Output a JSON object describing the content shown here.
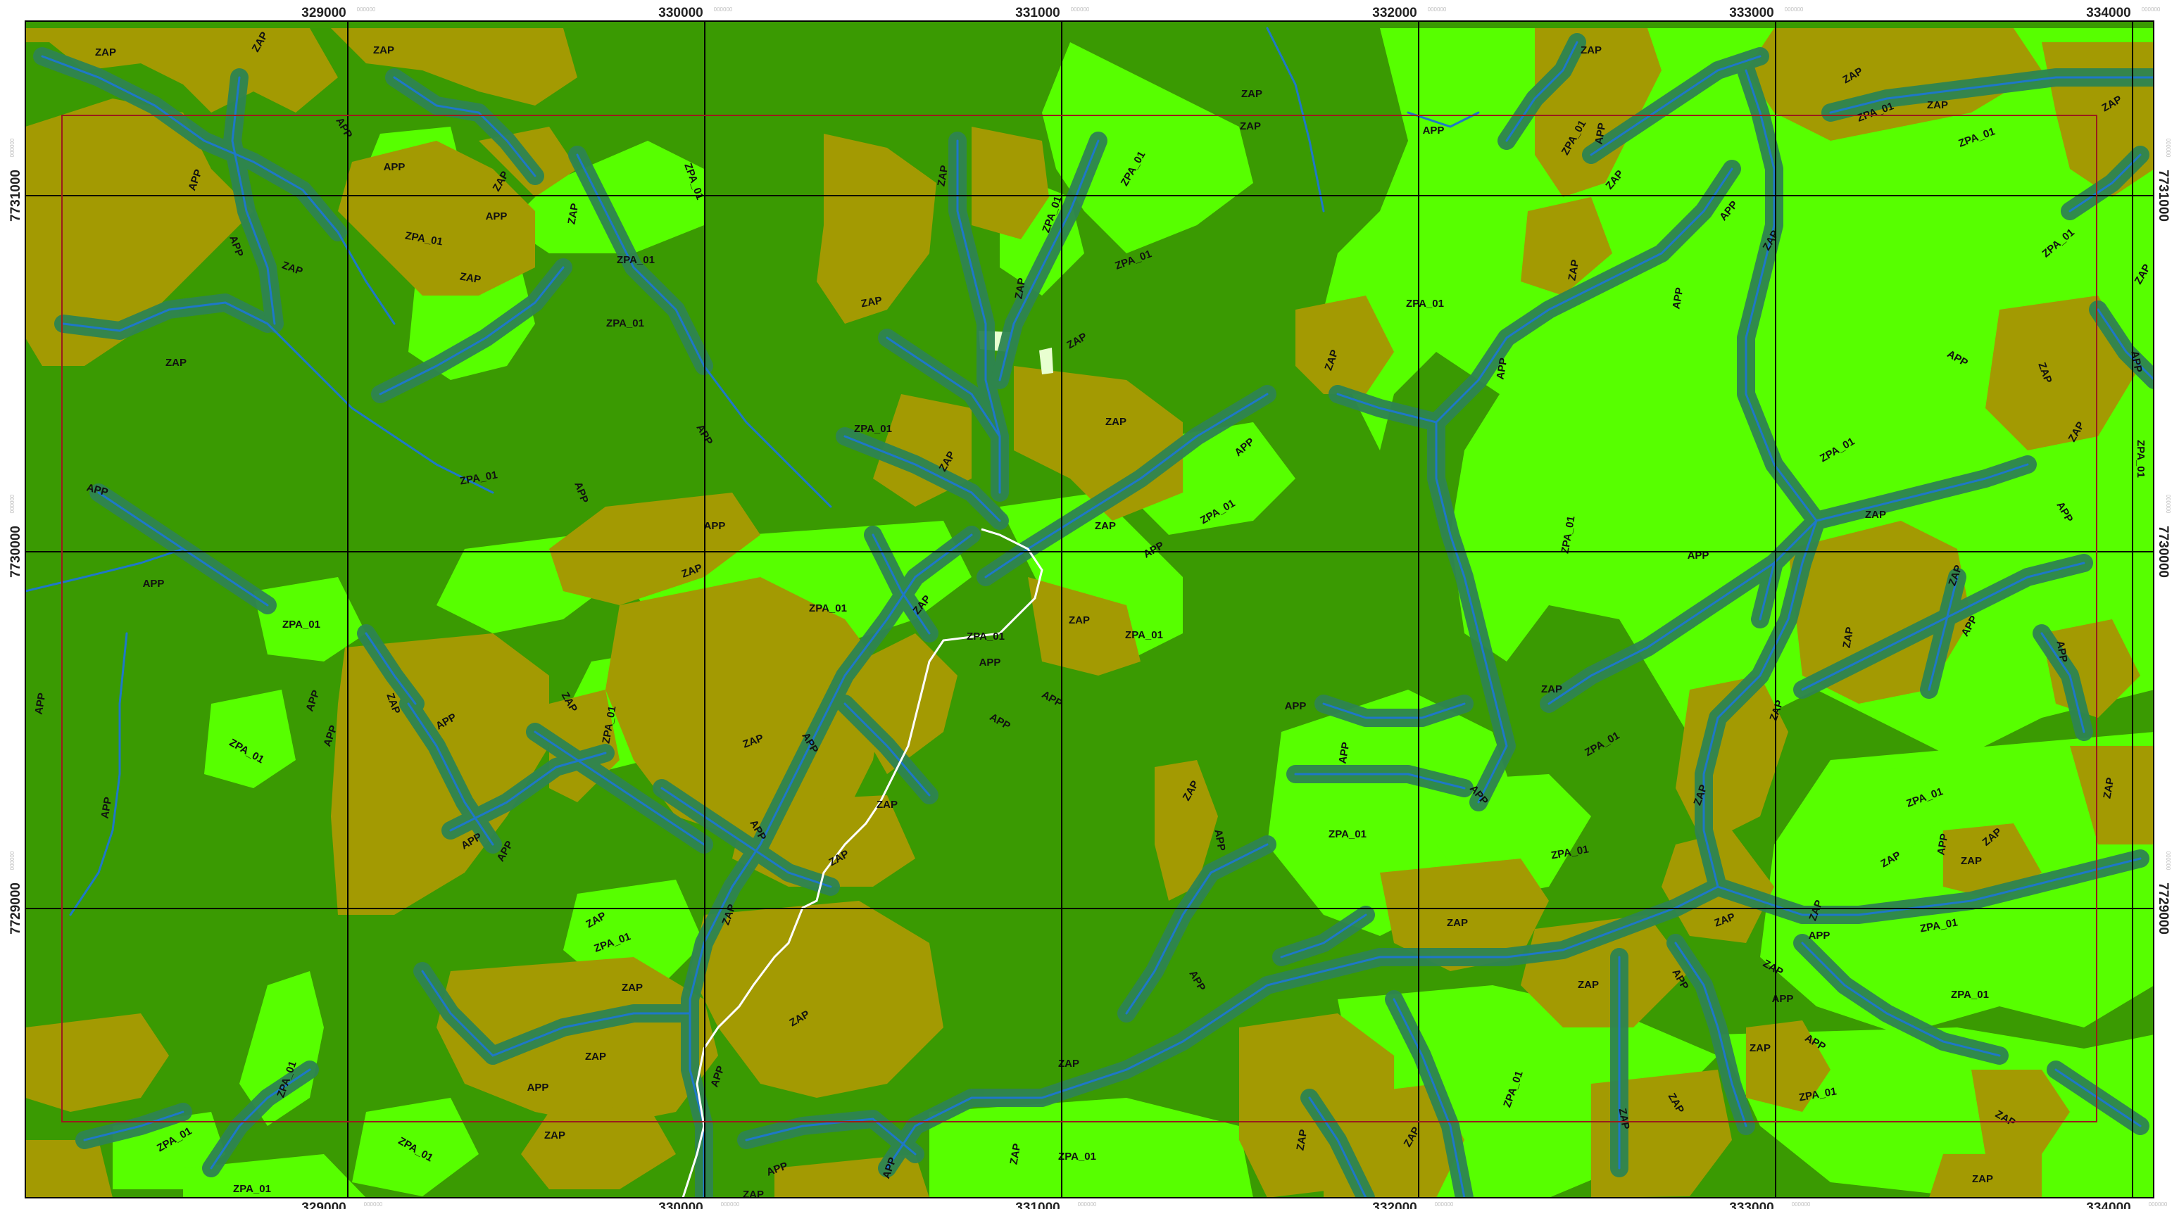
{
  "map": {
    "colors": {
      "forest": "#3a9a02",
      "zpa": "#57ff00",
      "zpa_light": "#7cff2a",
      "zap": "#a39a02",
      "app_buffer": "#2e8450",
      "stream": "#1e78c8",
      "road": "#ffffff",
      "grid": "#000000",
      "inner_frame": "#9a1c1c",
      "clearing": "#e8ffd0"
    },
    "legend_classes": [
      "ZAP",
      "ZPA_01",
      "APP"
    ],
    "x_ticks": [
      "329000",
      "330000",
      "331000",
      "332000",
      "333000",
      "334000"
    ],
    "x_tick_subs": [
      "000000",
      "000000",
      "000000",
      "000000",
      "000000",
      "000000"
    ],
    "y_ticks": [
      "7731000",
      "7730000",
      "7729000"
    ],
    "y_tick_subs": [
      "000000",
      "000000",
      "000000"
    ],
    "zone_labels": [
      {
        "text": "ZAP",
        "x": 150,
        "y": 75,
        "r": 0
      },
      {
        "text": "ZAP",
        "x": 370,
        "y": 60,
        "r": -60
      },
      {
        "text": "ZAP",
        "x": 545,
        "y": 72,
        "r": 0
      },
      {
        "text": "APP",
        "x": 488,
        "y": 182,
        "r": 60
      },
      {
        "text": "APP",
        "x": 560,
        "y": 238,
        "r": 0
      },
      {
        "text": "ZAP",
        "x": 712,
        "y": 258,
        "r": -60
      },
      {
        "text": "APP",
        "x": 278,
        "y": 256,
        "r": -70
      },
      {
        "text": "APP",
        "x": 705,
        "y": 308,
        "r": 0
      },
      {
        "text": "ZAP",
        "x": 815,
        "y": 304,
        "r": -80
      },
      {
        "text": "ZPA_01",
        "x": 985,
        "y": 258,
        "r": 70
      },
      {
        "text": "ZPA_01",
        "x": 602,
        "y": 340,
        "r": 10
      },
      {
        "text": "ZPA_01",
        "x": 903,
        "y": 370,
        "r": 0
      },
      {
        "text": "APP",
        "x": 335,
        "y": 350,
        "r": 70
      },
      {
        "text": "ZAP",
        "x": 415,
        "y": 382,
        "r": 20
      },
      {
        "text": "ZAP",
        "x": 668,
        "y": 396,
        "r": 10
      },
      {
        "text": "ZPA_01",
        "x": 888,
        "y": 460,
        "r": 0
      },
      {
        "text": "ZAP",
        "x": 250,
        "y": 516,
        "r": 0
      },
      {
        "text": "APP",
        "x": 1000,
        "y": 618,
        "r": 60
      },
      {
        "text": "APP",
        "x": 138,
        "y": 697,
        "r": 15
      },
      {
        "text": "ZPA_01",
        "x": 1240,
        "y": 610,
        "r": 0
      },
      {
        "text": "ZPA_01",
        "x": 680,
        "y": 680,
        "r": -10
      },
      {
        "text": "APP",
        "x": 825,
        "y": 700,
        "r": 70
      },
      {
        "text": "ZAP",
        "x": 1340,
        "y": 250,
        "r": -80
      },
      {
        "text": "ZPA_01",
        "x": 1495,
        "y": 305,
        "r": -70
      },
      {
        "text": "ZPA_01",
        "x": 1610,
        "y": 240,
        "r": -60
      },
      {
        "text": "ZAP",
        "x": 1776,
        "y": 180,
        "r": 0
      },
      {
        "text": "ZAP",
        "x": 1450,
        "y": 410,
        "r": -80
      },
      {
        "text": "ZPA_01",
        "x": 1610,
        "y": 370,
        "r": -20
      },
      {
        "text": "ZAP",
        "x": 1238,
        "y": 430,
        "r": -10
      },
      {
        "text": "ZAP",
        "x": 1530,
        "y": 485,
        "r": -30
      },
      {
        "text": "ZAP",
        "x": 1585,
        "y": 600,
        "r": 0
      },
      {
        "text": "ZAP",
        "x": 1346,
        "y": 656,
        "r": -60
      },
      {
        "text": "APP",
        "x": 1015,
        "y": 748,
        "r": 0
      },
      {
        "text": "ZPA_01",
        "x": 1730,
        "y": 728,
        "r": -30
      },
      {
        "text": "ZAP",
        "x": 1570,
        "y": 748,
        "r": 0
      },
      {
        "text": "APP",
        "x": 1768,
        "y": 636,
        "r": -40
      },
      {
        "text": "ZAP",
        "x": 983,
        "y": 812,
        "r": -20
      },
      {
        "text": "ZPA_01",
        "x": 1176,
        "y": 865,
        "r": 0
      },
      {
        "text": "ZAP",
        "x": 1310,
        "y": 860,
        "r": -50
      },
      {
        "text": "ZPA_01",
        "x": 1400,
        "y": 905,
        "r": 0
      },
      {
        "text": "ZAP",
        "x": 1533,
        "y": 882,
        "r": 0
      },
      {
        "text": "ZPA_01",
        "x": 1625,
        "y": 903,
        "r": 0
      },
      {
        "text": "APP",
        "x": 1639,
        "y": 782,
        "r": -30
      },
      {
        "text": "APP",
        "x": 218,
        "y": 830,
        "r": 0
      },
      {
        "text": "ZPA_01",
        "x": 428,
        "y": 888,
        "r": 0
      },
      {
        "text": "APP",
        "x": 58,
        "y": 1000,
        "r": -80
      },
      {
        "text": "ZPA_01",
        "x": 350,
        "y": 1068,
        "r": 30
      },
      {
        "text": "APP",
        "x": 445,
        "y": 996,
        "r": -70
      },
      {
        "text": "APP",
        "x": 470,
        "y": 1046,
        "r": -70
      },
      {
        "text": "ZAP",
        "x": 558,
        "y": 1000,
        "r": 70
      },
      {
        "text": "APP",
        "x": 634,
        "y": 1026,
        "r": -30
      },
      {
        "text": "ZAP",
        "x": 808,
        "y": 998,
        "r": 60
      },
      {
        "text": "ZPA_01",
        "x": 866,
        "y": 1030,
        "r": -80
      },
      {
        "text": "ZAP",
        "x": 1070,
        "y": 1054,
        "r": -20
      },
      {
        "text": "APP",
        "x": 1150,
        "y": 1056,
        "r": 60
      },
      {
        "text": "APP",
        "x": 1406,
        "y": 942,
        "r": 0
      },
      {
        "text": "APP",
        "x": 1494,
        "y": 994,
        "r": 30
      },
      {
        "text": "APP",
        "x": 1420,
        "y": 1026,
        "r": 30
      },
      {
        "text": "APP",
        "x": 152,
        "y": 1148,
        "r": -80
      },
      {
        "text": "ZAP",
        "x": 1260,
        "y": 1144,
        "r": 0
      },
      {
        "text": "APP",
        "x": 1076,
        "y": 1180,
        "r": 60
      },
      {
        "text": "APP",
        "x": 670,
        "y": 1196,
        "r": -30
      },
      {
        "text": "ZAP",
        "x": 1192,
        "y": 1220,
        "r": -30
      },
      {
        "text": "APP",
        "x": 718,
        "y": 1210,
        "r": -60
      },
      {
        "text": "ZAP",
        "x": 1692,
        "y": 1124,
        "r": -60
      },
      {
        "text": "APP",
        "x": 1732,
        "y": 1194,
        "r": 80
      },
      {
        "text": "ZPA_01",
        "x": 1914,
        "y": 1186,
        "r": 0
      },
      {
        "text": "APP",
        "x": 1840,
        "y": 1004,
        "r": 0
      },
      {
        "text": "APP",
        "x": 1910,
        "y": 1070,
        "r": -80
      },
      {
        "text": "ZAP",
        "x": 847,
        "y": 1308,
        "r": -30
      },
      {
        "text": "ZPA_01",
        "x": 870,
        "y": 1340,
        "r": -20
      },
      {
        "text": "ZAP",
        "x": 898,
        "y": 1404,
        "r": 0
      },
      {
        "text": "ZAP",
        "x": 1036,
        "y": 1300,
        "r": -70
      },
      {
        "text": "ZAP",
        "x": 1136,
        "y": 1448,
        "r": -30
      },
      {
        "text": "ZAP",
        "x": 846,
        "y": 1502,
        "r": 0
      },
      {
        "text": "APP",
        "x": 764,
        "y": 1546,
        "r": 0
      },
      {
        "text": "APP",
        "x": 1020,
        "y": 1530,
        "r": -70
      },
      {
        "text": "ZAP",
        "x": 1518,
        "y": 1512,
        "r": 0
      },
      {
        "text": "APP",
        "x": 1700,
        "y": 1394,
        "r": 60
      },
      {
        "text": "ZPA_01",
        "x": 408,
        "y": 1534,
        "r": -70
      },
      {
        "text": "ZAP",
        "x": 788,
        "y": 1614,
        "r": 0
      },
      {
        "text": "ZPA_01",
        "x": 248,
        "y": 1620,
        "r": -30
      },
      {
        "text": "ZPA_01",
        "x": 590,
        "y": 1634,
        "r": 30
      },
      {
        "text": "ZPA_01",
        "x": 358,
        "y": 1690,
        "r": 0
      },
      {
        "text": "ZAP",
        "x": 1070,
        "y": 1698,
        "r": 0
      },
      {
        "text": "APP",
        "x": 1104,
        "y": 1662,
        "r": -20
      },
      {
        "text": "APP",
        "x": 1264,
        "y": 1660,
        "r": -70
      },
      {
        "text": "ZAP",
        "x": 1443,
        "y": 1640,
        "r": -80
      },
      {
        "text": "ZPA_01",
        "x": 1530,
        "y": 1644,
        "r": 0
      },
      {
        "text": "ZAP",
        "x": 1850,
        "y": 1620,
        "r": -80
      },
      {
        "text": "ZAP",
        "x": 2006,
        "y": 1616,
        "r": -60
      },
      {
        "text": "ZPA_01",
        "x": 2150,
        "y": 1548,
        "r": -70
      },
      {
        "text": "ZAP",
        "x": 2256,
        "y": 1400,
        "r": 0
      },
      {
        "text": "ZAP",
        "x": 2070,
        "y": 1312,
        "r": 0
      },
      {
        "text": "ZPA_01",
        "x": 2230,
        "y": 1212,
        "r": -10
      },
      {
        "text": "ZPA_01",
        "x": 2024,
        "y": 432,
        "r": 0
      },
      {
        "text": "ZAP",
        "x": 1892,
        "y": 512,
        "r": -70
      },
      {
        "text": "ZPA_01",
        "x": 2228,
        "y": 760,
        "r": -80
      },
      {
        "text": "APP",
        "x": 2036,
        "y": 186,
        "r": 0
      },
      {
        "text": "ZAP",
        "x": 1778,
        "y": 134,
        "r": 0
      },
      {
        "text": "ZAP",
        "x": 2260,
        "y": 72,
        "r": 0
      },
      {
        "text": "ZPA_01",
        "x": 2236,
        "y": 196,
        "r": -60
      },
      {
        "text": "APP",
        "x": 2274,
        "y": 190,
        "r": -80
      },
      {
        "text": "ZAP",
        "x": 2294,
        "y": 256,
        "r": -50
      },
      {
        "text": "ZAP",
        "x": 2236,
        "y": 384,
        "r": -80
      },
      {
        "text": "APP",
        "x": 2134,
        "y": 524,
        "r": -80
      },
      {
        "text": "APP",
        "x": 2384,
        "y": 424,
        "r": -80
      },
      {
        "text": "APP",
        "x": 2456,
        "y": 300,
        "r": -50
      },
      {
        "text": "ZAP",
        "x": 2632,
        "y": 108,
        "r": -30
      },
      {
        "text": "ZPA_01",
        "x": 2664,
        "y": 160,
        "r": -20
      },
      {
        "text": "ZAP",
        "x": 2752,
        "y": 150,
        "r": 0
      },
      {
        "text": "ZAP",
        "x": 3000,
        "y": 148,
        "r": -30
      },
      {
        "text": "ZPA_01",
        "x": 2808,
        "y": 196,
        "r": -20
      },
      {
        "text": "ZPA_01",
        "x": 2924,
        "y": 346,
        "r": -40
      },
      {
        "text": "ZAP",
        "x": 2516,
        "y": 342,
        "r": -60
      },
      {
        "text": "APP",
        "x": 2780,
        "y": 510,
        "r": 30
      },
      {
        "text": "ZAP",
        "x": 2904,
        "y": 530,
        "r": 70
      },
      {
        "text": "APP",
        "x": 3034,
        "y": 514,
        "r": 80
      },
      {
        "text": "ZAP",
        "x": 3044,
        "y": 390,
        "r": -60
      },
      {
        "text": "ZPA_01",
        "x": 2610,
        "y": 640,
        "r": -30
      },
      {
        "text": "ZAP",
        "x": 2950,
        "y": 614,
        "r": -60
      },
      {
        "text": "ZPA_01",
        "x": 3040,
        "y": 652,
        "r": 90
      },
      {
        "text": "APP",
        "x": 2932,
        "y": 728,
        "r": 60
      },
      {
        "text": "APP",
        "x": 2412,
        "y": 790,
        "r": 0
      },
      {
        "text": "ZAP",
        "x": 2664,
        "y": 732,
        "r": 0
      },
      {
        "text": "ZAP",
        "x": 2778,
        "y": 818,
        "r": -70
      },
      {
        "text": "APP",
        "x": 2798,
        "y": 890,
        "r": -60
      },
      {
        "text": "APP",
        "x": 2928,
        "y": 926,
        "r": 80
      },
      {
        "text": "ZAP",
        "x": 2626,
        "y": 906,
        "r": -80
      },
      {
        "text": "ZPA_01",
        "x": 2276,
        "y": 1058,
        "r": -30
      },
      {
        "text": "ZAP",
        "x": 2204,
        "y": 980,
        "r": 0
      },
      {
        "text": "APP",
        "x": 2100,
        "y": 1130,
        "r": 50
      },
      {
        "text": "ZAP",
        "x": 2416,
        "y": 1130,
        "r": -70
      },
      {
        "text": "ZAP",
        "x": 2524,
        "y": 1010,
        "r": -70
      },
      {
        "text": "ZPA_01",
        "x": 2734,
        "y": 1134,
        "r": -20
      },
      {
        "text": "ZAP",
        "x": 2686,
        "y": 1222,
        "r": -30
      },
      {
        "text": "APP",
        "x": 2760,
        "y": 1200,
        "r": -80
      },
      {
        "text": "ZAP",
        "x": 2830,
        "y": 1190,
        "r": -40
      },
      {
        "text": "ZAP",
        "x": 2800,
        "y": 1224,
        "r": 0
      },
      {
        "text": "ZAP",
        "x": 2996,
        "y": 1120,
        "r": -80
      },
      {
        "text": "APP",
        "x": 2584,
        "y": 1330,
        "r": 0
      },
      {
        "text": "ZPA_01",
        "x": 2754,
        "y": 1316,
        "r": -10
      },
      {
        "text": "ZAP",
        "x": 2580,
        "y": 1294,
        "r": -70
      },
      {
        "text": "ZAP",
        "x": 2450,
        "y": 1308,
        "r": -20
      },
      {
        "text": "ZPA_01",
        "x": 2798,
        "y": 1414,
        "r": 0
      },
      {
        "text": "ZAP",
        "x": 2518,
        "y": 1376,
        "r": 30
      },
      {
        "text": "APP",
        "x": 2532,
        "y": 1420,
        "r": 0
      },
      {
        "text": "ZAP",
        "x": 2500,
        "y": 1490,
        "r": 0
      },
      {
        "text": "APP",
        "x": 2578,
        "y": 1482,
        "r": 30
      },
      {
        "text": "APP",
        "x": 2386,
        "y": 1392,
        "r": 60
      },
      {
        "text": "ZPA_01",
        "x": 2582,
        "y": 1556,
        "r": -10
      },
      {
        "text": "ZAP",
        "x": 2380,
        "y": 1568,
        "r": 60
      },
      {
        "text": "ZAP",
        "x": 2306,
        "y": 1590,
        "r": 80
      },
      {
        "text": "ZAP",
        "x": 2848,
        "y": 1590,
        "r": 30
      },
      {
        "text": "ZAP",
        "x": 2816,
        "y": 1676,
        "r": 0
      }
    ]
  }
}
